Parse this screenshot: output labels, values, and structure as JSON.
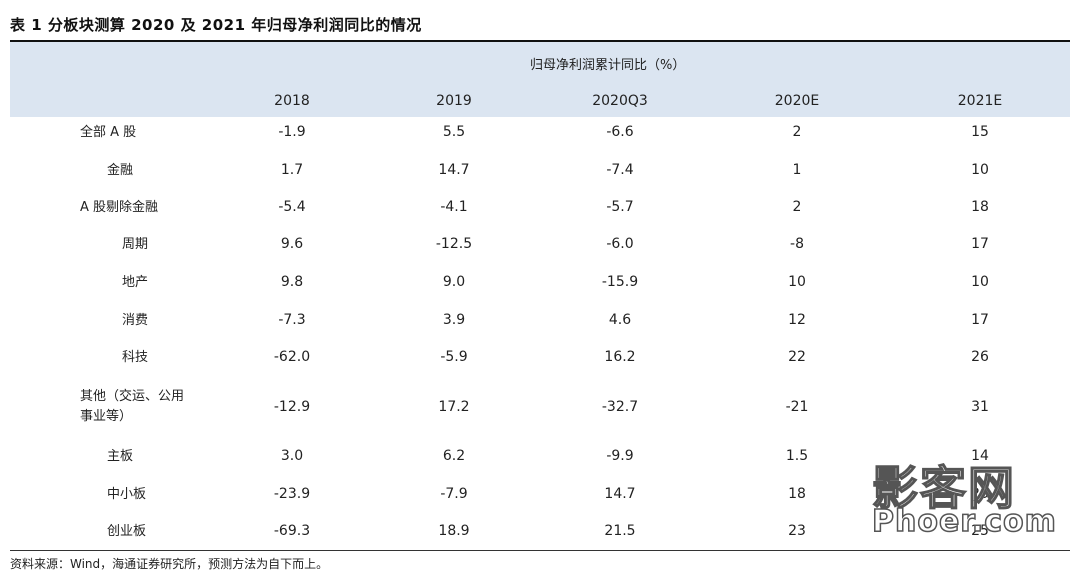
{
  "title": "表 1 分板块测算 2020 及 2021 年归母净利润同比的情况",
  "table": {
    "group_header": "归母净利润累计同比（%）",
    "columns": [
      "2018",
      "2019",
      "2020Q3",
      "2020E",
      "2021E"
    ],
    "rows": [
      {
        "label": "全部 A 股",
        "values": [
          "-1.9",
          "5.5",
          "-6.6",
          "2",
          "15"
        ]
      },
      {
        "label": "金融",
        "values": [
          "1.7",
          "14.7",
          "-7.4",
          "1",
          "10"
        ]
      },
      {
        "label": "A 股剔除金融",
        "values": [
          "-5.4",
          "-4.1",
          "-5.7",
          "2",
          "18"
        ]
      },
      {
        "label": "周期",
        "values": [
          "9.6",
          "-12.5",
          "-6.0",
          "-8",
          "17"
        ]
      },
      {
        "label": "地产",
        "values": [
          "9.8",
          "9.0",
          "-15.9",
          "10",
          "10"
        ]
      },
      {
        "label": "消费",
        "values": [
          "-7.3",
          "3.9",
          "4.6",
          "12",
          "17"
        ]
      },
      {
        "label": "科技",
        "values": [
          "-62.0",
          "-5.9",
          "16.2",
          "22",
          "26"
        ]
      },
      {
        "label_line1": "其他（交运、公用",
        "label_line2": "事业等）",
        "values": [
          "-12.9",
          "17.2",
          "-32.7",
          "-21",
          "31"
        ]
      },
      {
        "label": "主板",
        "values": [
          "3.0",
          "6.2",
          "-9.9",
          "1.5",
          "14"
        ]
      },
      {
        "label": "中小板",
        "values": [
          "-23.9",
          "-7.9",
          "14.7",
          "18",
          "20"
        ]
      },
      {
        "label": "创业板",
        "values": [
          "-69.3",
          "18.9",
          "21.5",
          "23",
          "25"
        ]
      }
    ]
  },
  "source": "资料来源：Wind，海通证券研究所，预测方法为自下而上。",
  "watermark": {
    "line1": "影客网",
    "line2": "Phoer.com"
  },
  "colors": {
    "header_bg": "#dbe5f1",
    "text": "#222222"
  }
}
